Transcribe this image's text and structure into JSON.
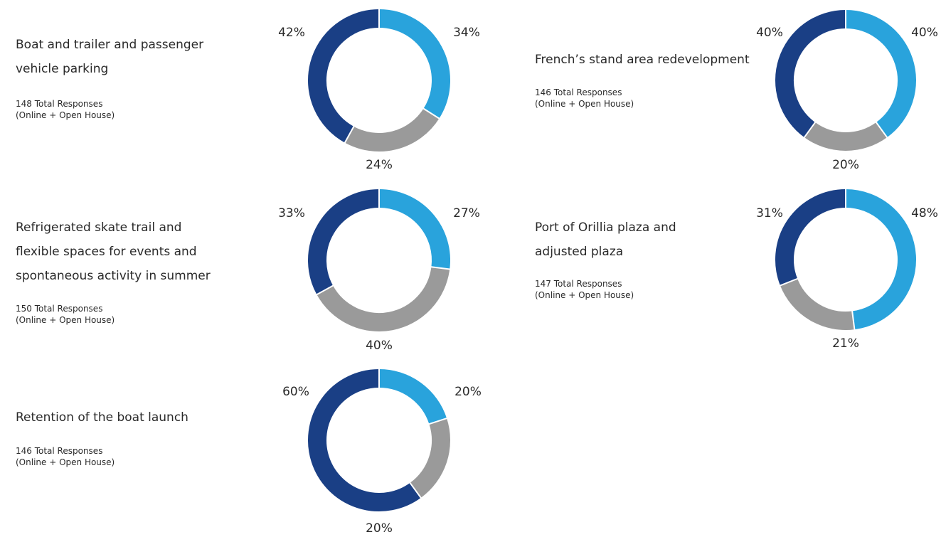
{
  "colors": {
    "yes": "#29a3dc",
    "neutral": "#9a9a9a",
    "no": "#1a3f85"
  },
  "chart_data": [
    {
      "type": "pie",
      "title_lines": [
        "Boat and trailer and passenger",
        "vehicle parking"
      ],
      "responses": [
        "148 Total Responses",
        "(Online + Open House)"
      ],
      "slices": [
        {
          "value": 34,
          "label": "34%"
        },
        {
          "value": 24,
          "label": "24%"
        },
        {
          "value": 42,
          "label": "42%"
        }
      ]
    },
    {
      "type": "pie",
      "title_lines": [
        "French’s stand area redevelopment"
      ],
      "responses": [
        "146 Total Responses",
        "(Online + Open House)"
      ],
      "slices": [
        {
          "value": 40,
          "label": "40%"
        },
        {
          "value": 20,
          "label": "20%"
        },
        {
          "value": 40,
          "label": "40%"
        }
      ]
    },
    {
      "type": "pie",
      "title_lines": [
        "Refrigerated skate trail and",
        "flexible spaces for events and",
        "spontaneous activity in summer"
      ],
      "responses": [
        "150 Total Responses",
        "(Online + Open House)"
      ],
      "slices": [
        {
          "value": 27,
          "label": "27%"
        },
        {
          "value": 40,
          "label": "40%"
        },
        {
          "value": 33,
          "label": "33%"
        }
      ]
    },
    {
      "type": "pie",
      "title_lines": [
        "Port of Orillia plaza and",
        "adjusted plaza"
      ],
      "responses": [
        "147 Total Responses",
        "(Online + Open House)"
      ],
      "slices": [
        {
          "value": 48,
          "label": "48%"
        },
        {
          "value": 21,
          "label": "21%"
        },
        {
          "value": 31,
          "label": "31%"
        }
      ]
    },
    {
      "type": "pie",
      "title_lines": [
        "Retention of the boat launch"
      ],
      "responses": [
        "146 Total Responses",
        "(Online + Open House)"
      ],
      "slices": [
        {
          "value": 20,
          "label": "20%"
        },
        {
          "value": 20,
          "label": "20%"
        },
        {
          "value": 60,
          "label": "60%"
        }
      ]
    }
  ]
}
